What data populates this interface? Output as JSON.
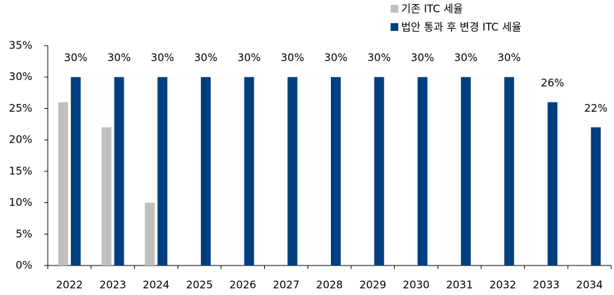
{
  "chart_data": {
    "type": "bar",
    "categories": [
      "2022",
      "2023",
      "2024",
      "2025",
      "2026",
      "2027",
      "2028",
      "2029",
      "2030",
      "2031",
      "2032",
      "2033",
      "2034"
    ],
    "series": [
      {
        "name": "기존 ITC 세율",
        "color": "#bfbfbf",
        "values": [
          26,
          22,
          10,
          null,
          null,
          null,
          null,
          null,
          null,
          null,
          null,
          null,
          null
        ]
      },
      {
        "name": "법안 통과 후 변경 ITC 세율",
        "color": "#003f7f",
        "values": [
          30,
          30,
          30,
          30,
          30,
          30,
          30,
          30,
          30,
          30,
          30,
          26,
          22
        ],
        "value_labels": [
          "30%",
          "30%",
          "30%",
          "30%",
          "30%",
          "30%",
          "30%",
          "30%",
          "30%",
          "30%",
          "30%",
          "26%",
          "22%"
        ]
      }
    ],
    "ylim": [
      0,
      35
    ],
    "yticks": [
      {
        "value": 0,
        "label": "0%"
      },
      {
        "value": 5,
        "label": "5%"
      },
      {
        "value": 10,
        "label": "10%"
      },
      {
        "value": 15,
        "label": "15%"
      },
      {
        "value": 20,
        "label": "20%"
      },
      {
        "value": 25,
        "label": "25%"
      },
      {
        "value": 30,
        "label": "30%"
      },
      {
        "value": 35,
        "label": "35%"
      }
    ],
    "legend": "top-right"
  }
}
